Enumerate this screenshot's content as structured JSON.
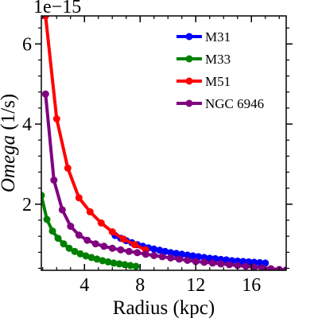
{
  "chart_data": {
    "type": "line",
    "offset_text": "1e−15",
    "xlabel": "Radius (kpc)",
    "ylabel_italic": "Omega",
    "ylabel_rest": " (1/s)",
    "xlim": [
      0.9,
      18.5
    ],
    "ylim": [
      0.35,
      6.7
    ],
    "xticks": [
      4,
      8,
      12,
      16
    ],
    "yticks": [
      2,
      4,
      6
    ],
    "minor_ticks": true,
    "legend_position": "upper right",
    "series": [
      {
        "name": "M31",
        "color": "#0000ff",
        "x": [
          6.2,
          6.6,
          7.0,
          7.4,
          7.8,
          8.2,
          8.6,
          9.0,
          9.4,
          9.8,
          10.2,
          10.6,
          11.0,
          11.4,
          11.8,
          12.2,
          12.6,
          13.0,
          13.4,
          13.8,
          14.2,
          14.6,
          15.0,
          15.4,
          15.8,
          16.2,
          16.6,
          17.0
        ],
        "y": [
          1.22,
          1.15,
          1.09,
          1.04,
          0.99,
          0.95,
          0.91,
          0.88,
          0.85,
          0.82,
          0.79,
          0.77,
          0.75,
          0.73,
          0.71,
          0.69,
          0.67,
          0.65,
          0.64,
          0.62,
          0.61,
          0.59,
          0.58,
          0.57,
          0.56,
          0.55,
          0.54,
          0.53
        ]
      },
      {
        "name": "M33",
        "color": "#008000",
        "x": [
          0.9,
          1.3,
          1.7,
          2.1,
          2.5,
          2.9,
          3.3,
          3.7,
          4.1,
          4.5,
          4.9,
          5.3,
          5.7,
          6.1,
          6.5,
          6.9,
          7.3,
          7.7
        ],
        "y": [
          2.22,
          1.62,
          1.33,
          1.15,
          1.01,
          0.9,
          0.82,
          0.76,
          0.71,
          0.67,
          0.63,
          0.59,
          0.56,
          0.53,
          0.51,
          0.49,
          0.47,
          0.45
        ]
      },
      {
        "name": "M51",
        "color": "#ff0000",
        "x": [
          1.2,
          2.0,
          2.8,
          3.6,
          4.4,
          5.2,
          6.0,
          6.8,
          7.6,
          8.4
        ],
        "y": [
          6.7,
          4.13,
          2.9,
          2.16,
          1.81,
          1.53,
          1.31,
          1.13,
          0.99,
          0.86
        ]
      },
      {
        "name": "NGC 6946",
        "color": "#800080",
        "x": [
          1.2,
          1.8,
          2.4,
          3.0,
          3.6,
          4.2,
          4.8,
          5.4,
          6.0,
          6.6,
          7.2,
          7.8,
          8.4,
          9.0,
          9.6,
          10.2,
          10.8,
          11.4,
          12.0,
          12.6,
          13.2,
          13.8,
          14.4,
          15.0,
          15.6,
          16.2,
          16.8,
          17.4,
          18.0,
          18.5
        ],
        "y": [
          4.75,
          2.6,
          1.86,
          1.45,
          1.23,
          1.1,
          1.01,
          0.95,
          0.9,
          0.86,
          0.82,
          0.79,
          0.75,
          0.72,
          0.69,
          0.66,
          0.63,
          0.6,
          0.57,
          0.55,
          0.53,
          0.51,
          0.49,
          0.47,
          0.45,
          0.43,
          0.41,
          0.39,
          0.37,
          0.36
        ]
      }
    ]
  }
}
